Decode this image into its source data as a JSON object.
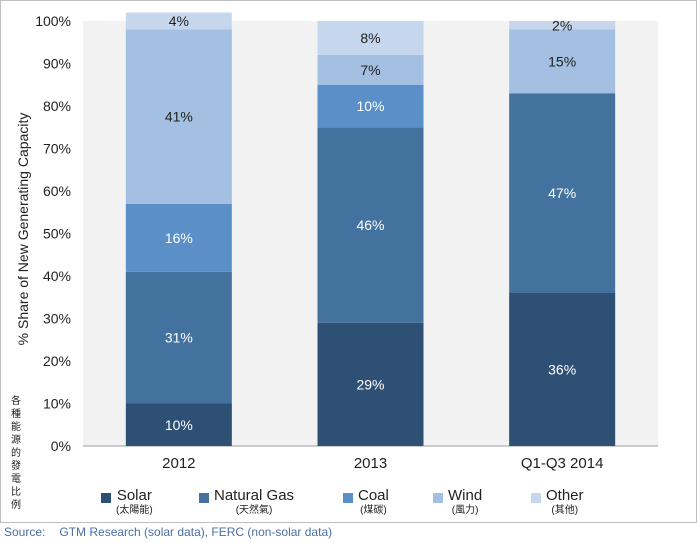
{
  "chart_data": {
    "type": "bar",
    "stacked": true,
    "categories": [
      "2012",
      "2013",
      "Q1-Q3 2014"
    ],
    "series": [
      {
        "name": "Solar",
        "name_zh": "(太陽能)",
        "color": "#2e5075",
        "values": [
          10,
          29,
          36
        ]
      },
      {
        "name": "Natural Gas",
        "name_zh": "(天然氣)",
        "color": "#43729f",
        "values": [
          31,
          46,
          47
        ]
      },
      {
        "name": "Coal",
        "name_zh": "(煤碳)",
        "color": "#5b8fc7",
        "values": [
          16,
          10,
          0
        ]
      },
      {
        "name": "Wind",
        "name_zh": "(風力)",
        "color": "#a3bfe1",
        "values": [
          41,
          7,
          15
        ]
      },
      {
        "name": "Other",
        "name_zh": "(其他)",
        "color": "#c6d6ec",
        "values": [
          4,
          8,
          2
        ]
      }
    ],
    "data_labels": [
      [
        "10%",
        "29%",
        "36%"
      ],
      [
        "31%",
        "46%",
        "47%"
      ],
      [
        "16%",
        "10%",
        ""
      ],
      [
        "41%",
        "7%",
        "15%"
      ],
      [
        "4%",
        "8%",
        "2%"
      ]
    ],
    "ylabel": "% Share of New Generating Capacity",
    "ylabel_zh": "各種能源的發電比例",
    "ylim": [
      0,
      100
    ],
    "yticks": [
      "0%",
      "10%",
      "20%",
      "30%",
      "40%",
      "50%",
      "60%",
      "70%",
      "80%",
      "90%",
      "100%"
    ],
    "grid": false,
    "legend_position": "bottom",
    "plot_background": "#f2f2f2"
  },
  "source": {
    "label": "Source:",
    "text": "GTM Research (solar data), FERC (non-solar data)"
  }
}
